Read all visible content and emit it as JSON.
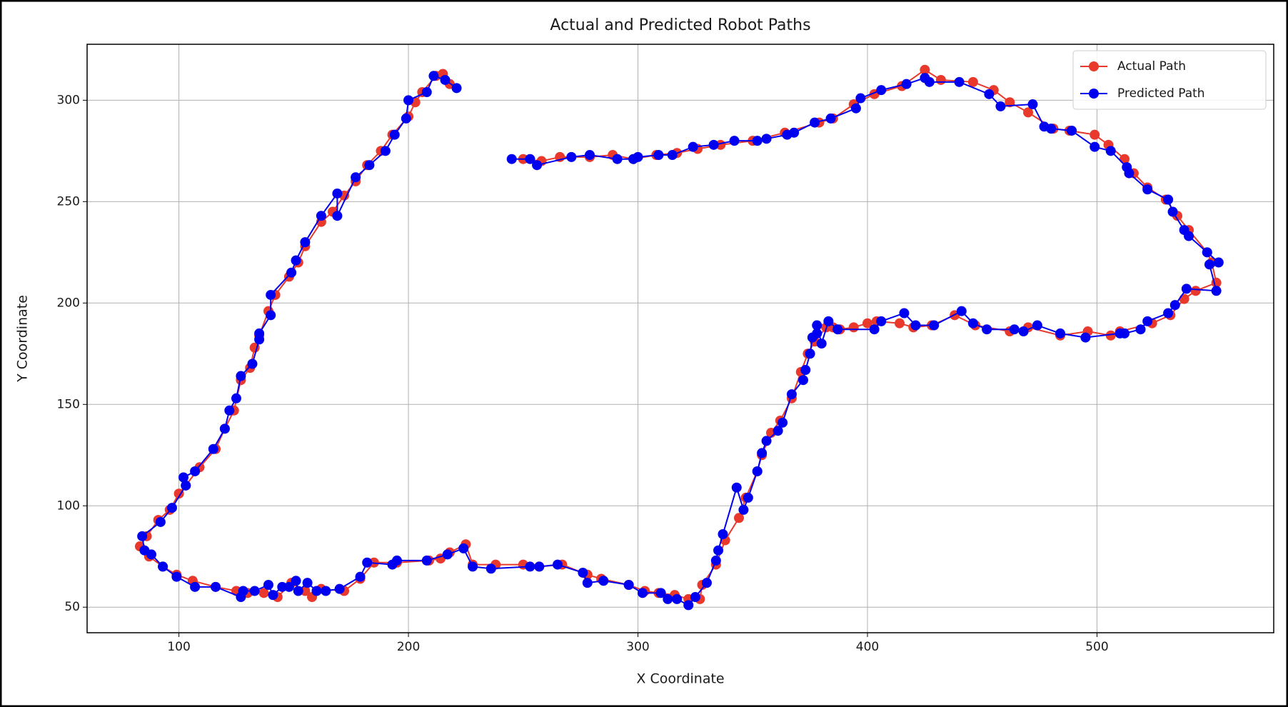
{
  "chart_data": {
    "type": "line",
    "title": "Actual and Predicted Robot Paths",
    "xlabel": "X Coordinate",
    "ylabel": "Y Coordinate",
    "xlim": [
      60,
      577
    ],
    "ylim": [
      37.4,
      327.6
    ],
    "xticks": [
      100,
      200,
      300,
      400,
      500
    ],
    "yticks": [
      50,
      100,
      150,
      200,
      250,
      300
    ],
    "grid": true,
    "legend": "upper right",
    "series": [
      {
        "name": "Actual Path",
        "color": "#e8392c",
        "x": [
          218,
          215,
          212,
          206,
          203,
          200,
          193,
          188,
          182,
          177,
          172,
          167,
          162,
          155,
          152,
          148,
          142,
          139,
          135,
          133,
          131,
          127,
          124,
          120,
          116,
          109,
          103,
          100,
          96,
          91,
          86,
          83,
          87,
          93,
          99,
          106,
          116,
          125,
          130,
          137,
          143,
          149,
          155,
          158,
          162,
          172,
          179,
          185,
          195,
          209,
          214,
          218,
          225,
          228,
          238,
          250,
          257,
          267,
          278,
          284,
          296,
          303,
          309,
          316,
          322,
          327,
          328,
          334,
          338,
          344,
          347,
          352,
          354,
          358,
          362,
          367,
          371,
          374,
          377,
          382,
          385,
          388,
          394,
          400,
          404,
          414,
          420,
          428,
          438,
          447,
          462,
          470,
          484,
          496,
          506,
          510,
          524,
          532,
          538,
          543,
          552,
          550,
          548,
          540,
          535,
          530,
          522,
          516,
          512,
          505,
          499,
          488,
          481,
          470,
          462,
          455,
          446,
          432,
          425,
          415,
          403,
          394,
          385,
          379,
          364,
          350,
          336,
          326,
          317,
          308,
          298,
          289,
          279,
          266,
          258,
          250
        ],
        "values": [
          308,
          313,
          312,
          304,
          299,
          292,
          283,
          275,
          268,
          260,
          253,
          245,
          240,
          228,
          220,
          213,
          204,
          196,
          184,
          178,
          168,
          162,
          147,
          138,
          128,
          119,
          110,
          106,
          98,
          93,
          85,
          80,
          75,
          70,
          66,
          63,
          60,
          58,
          57,
          57,
          55,
          62,
          58,
          55,
          59,
          58,
          64,
          72,
          72,
          73,
          74,
          77,
          81,
          71,
          71,
          71,
          70,
          71,
          66,
          64,
          61,
          58,
          57,
          56,
          54,
          54,
          61,
          71,
          83,
          94,
          104,
          117,
          125,
          136,
          142,
          153,
          166,
          175,
          181,
          188,
          188,
          187,
          188,
          190,
          191,
          190,
          188,
          189,
          194,
          189,
          186,
          188,
          184,
          186,
          184,
          186,
          190,
          194,
          202,
          206,
          210,
          220,
          225,
          236,
          243,
          251,
          257,
          264,
          271,
          278,
          283,
          285,
          286,
          294,
          299,
          305,
          309,
          310,
          315,
          307,
          303,
          298,
          291,
          289,
          284,
          280,
          278,
          276,
          274,
          273,
          271,
          273,
          272,
          272,
          270,
          271
        ]
      },
      {
        "name": "Predicted Path",
        "color": "#0000f0",
        "x": [
          221,
          216,
          211,
          208,
          200,
          199,
          194,
          190,
          183,
          177,
          169,
          169,
          162,
          155,
          151,
          149,
          140,
          140,
          135,
          135,
          132,
          127,
          125,
          122,
          120,
          115,
          107,
          102,
          103,
          97,
          92,
          84,
          85,
          88,
          93,
          99,
          107,
          116,
          127,
          128,
          133,
          139,
          141,
          145,
          148,
          151,
          152,
          156,
          160,
          164,
          170,
          179,
          182,
          193,
          195,
          208,
          217,
          224,
          228,
          236,
          253,
          257,
          265,
          276,
          278,
          285,
          296,
          302,
          310,
          313,
          317,
          322,
          325,
          330,
          334,
          335,
          337,
          343,
          346,
          348,
          352,
          354,
          356,
          361,
          363,
          367,
          372,
          373,
          375,
          376,
          378,
          378,
          380,
          383,
          387,
          403,
          406,
          416,
          421,
          429,
          441,
          446,
          452,
          464,
          468,
          474,
          484,
          495,
          510,
          512,
          519,
          522,
          531,
          534,
          539,
          552,
          549,
          553,
          548,
          540,
          538,
          533,
          531,
          522,
          514,
          513,
          506,
          499,
          489,
          480,
          477,
          472,
          458,
          453,
          440,
          427,
          425,
          417,
          406,
          397,
          395,
          384,
          377,
          368,
          365,
          356,
          352,
          342,
          333,
          324,
          315,
          309,
          300,
          298,
          291,
          279,
          271,
          256,
          253,
          245
        ],
        "values": [
          306,
          310,
          312,
          304,
          300,
          291,
          283,
          275,
          268,
          262,
          243,
          254,
          243,
          230,
          221,
          215,
          204,
          194,
          185,
          182,
          170,
          164,
          153,
          147,
          138,
          128,
          117,
          114,
          110,
          99,
          92,
          85,
          78,
          76,
          70,
          65,
          60,
          60,
          55,
          58,
          58,
          61,
          56,
          60,
          60,
          63,
          58,
          62,
          58,
          58,
          59,
          65,
          72,
          71,
          73,
          73,
          76,
          79,
          70,
          69,
          70,
          70,
          71,
          67,
          62,
          63,
          61,
          57,
          57,
          54,
          54,
          51,
          55,
          62,
          73,
          78,
          86,
          109,
          98,
          104,
          117,
          126,
          132,
          137,
          141,
          155,
          162,
          167,
          175,
          183,
          185,
          189,
          180,
          191,
          187,
          187,
          191,
          195,
          189,
          189,
          196,
          190,
          187,
          187,
          186,
          189,
          185,
          183,
          185,
          185,
          187,
          191,
          195,
          199,
          207,
          206,
          219,
          220,
          225,
          233,
          236,
          245,
          251,
          256,
          264,
          267,
          275,
          277,
          285,
          286,
          287,
          298,
          297,
          303,
          309,
          309,
          311,
          308,
          305,
          301,
          296,
          291,
          289,
          284,
          283,
          281,
          280,
          280,
          278,
          277,
          273,
          273,
          272,
          271,
          271,
          273,
          272,
          268,
          271,
          271
        ]
      }
    ]
  }
}
